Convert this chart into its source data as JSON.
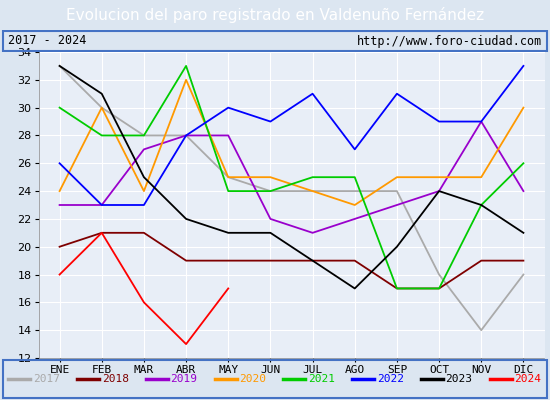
{
  "title": "Evolucion del paro registrado en Valdenuño Fernández",
  "subtitle_left": "2017 - 2024",
  "subtitle_right": "http://www.foro-ciudad.com",
  "xlabel_months": [
    "ENE",
    "FEB",
    "MAR",
    "ABR",
    "MAY",
    "JUN",
    "JUL",
    "AGO",
    "SEP",
    "OCT",
    "NOV",
    "DIC"
  ],
  "ylim": [
    12,
    34
  ],
  "yticks": [
    12,
    14,
    16,
    18,
    20,
    22,
    24,
    26,
    28,
    30,
    32,
    34
  ],
  "series": {
    "2017": {
      "color": "#aaaaaa",
      "data": [
        33,
        30,
        28,
        28,
        25,
        24,
        24,
        24,
        24,
        18,
        14,
        18
      ]
    },
    "2018": {
      "color": "#7f0000",
      "data": [
        20,
        21,
        21,
        19,
        19,
        19,
        19,
        19,
        17,
        17,
        19,
        19
      ]
    },
    "2019": {
      "color": "#9900cc",
      "data": [
        23,
        23,
        27,
        28,
        28,
        22,
        21,
        22,
        23,
        24,
        29,
        24
      ]
    },
    "2020": {
      "color": "#ff9900",
      "data": [
        24,
        30,
        24,
        32,
        25,
        25,
        24,
        23,
        25,
        25,
        25,
        30
      ]
    },
    "2021": {
      "color": "#00cc00",
      "data": [
        30,
        28,
        28,
        33,
        24,
        24,
        25,
        25,
        17,
        17,
        23,
        26
      ]
    },
    "2022": {
      "color": "#0000ff",
      "data": [
        26,
        23,
        23,
        28,
        30,
        29,
        31,
        27,
        31,
        29,
        29,
        33
      ]
    },
    "2023": {
      "color": "#000000",
      "data": [
        33,
        31,
        25,
        22,
        21,
        21,
        19,
        17,
        20,
        24,
        23,
        21
      ]
    },
    "2024": {
      "color": "#ff0000",
      "data": [
        18,
        21,
        16,
        13,
        17,
        null,
        null,
        null,
        null,
        null,
        null,
        null
      ]
    }
  },
  "background_color": "#dce6f1",
  "plot_bg_color": "#e8eef7",
  "title_bg_color": "#4472c4",
  "title_color": "#ffffff",
  "subtitle_bg_color": "#dce6f1",
  "subtitle_color": "#000000",
  "grid_color": "#ffffff",
  "legend_bg_color": "#dce6f1",
  "border_color": "#4472c4",
  "title_fontsize": 11,
  "tick_fontsize": 8
}
